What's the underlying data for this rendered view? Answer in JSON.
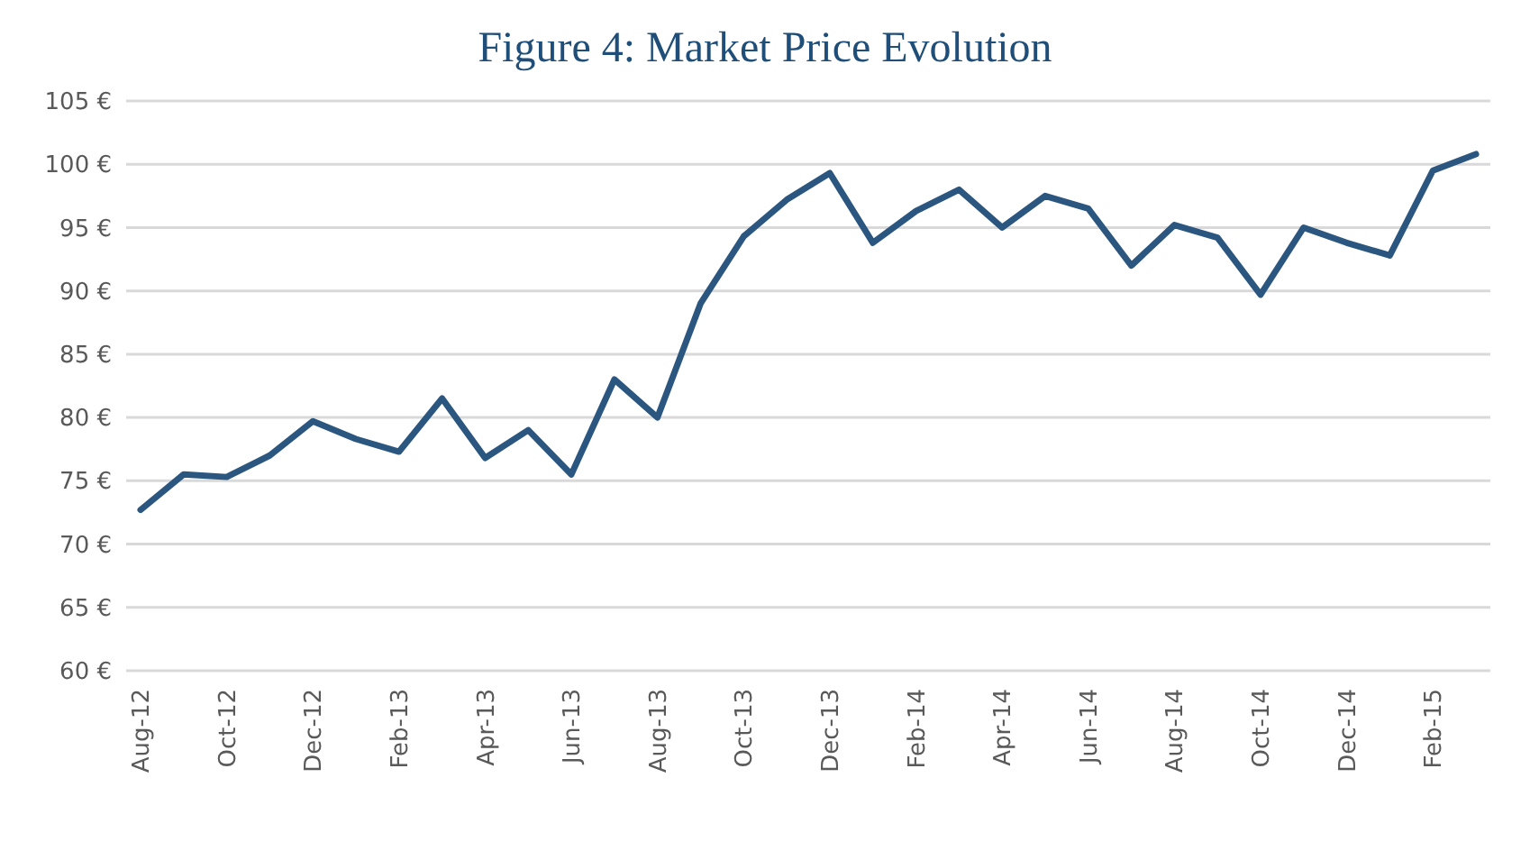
{
  "chart_data": {
    "type": "line",
    "title": "Figure 4: Market Price Evolution",
    "categories": [
      "Aug-12",
      null,
      "Oct-12",
      null,
      "Dec-12",
      null,
      "Feb-13",
      null,
      "Apr-13",
      null,
      "Jun-13",
      null,
      "Aug-13",
      null,
      "Oct-13",
      null,
      "Dec-13",
      null,
      "Feb-14",
      null,
      "Apr-14",
      null,
      "Jun-14",
      null,
      "Aug-14",
      null,
      "Oct-14",
      null,
      "Dec-14",
      null,
      "Feb-15",
      null
    ],
    "series": [
      {
        "color": "#2b5680",
        "values": [
          72.7,
          75.5,
          75.3,
          77,
          79.7,
          78.3,
          77.3,
          81.5,
          76.8,
          79,
          75.5,
          83,
          80,
          89,
          94.3,
          97.2,
          99.3,
          93.8,
          96.3,
          98,
          95,
          97.5,
          96.5,
          92,
          95.2,
          94.2,
          89.7,
          95,
          93.8,
          92.8,
          99.5,
          100.8
        ]
      }
    ],
    "ylim": [
      60,
      105
    ],
    "yticks": [
      {
        "value": 60,
        "label": "60 €"
      },
      {
        "value": 65,
        "label": "65 €"
      },
      {
        "value": 70,
        "label": "70 €"
      },
      {
        "value": 75,
        "label": "75 €"
      },
      {
        "value": 80,
        "label": "80 €"
      },
      {
        "value": 85,
        "label": "85 €"
      },
      {
        "value": 90,
        "label": "90 €"
      },
      {
        "value": 95,
        "label": "95 €"
      },
      {
        "value": 100,
        "label": "100 €"
      },
      {
        "value": 105,
        "label": "105 €"
      }
    ],
    "grid": "y",
    "marker": "none",
    "line_style": "solid"
  }
}
